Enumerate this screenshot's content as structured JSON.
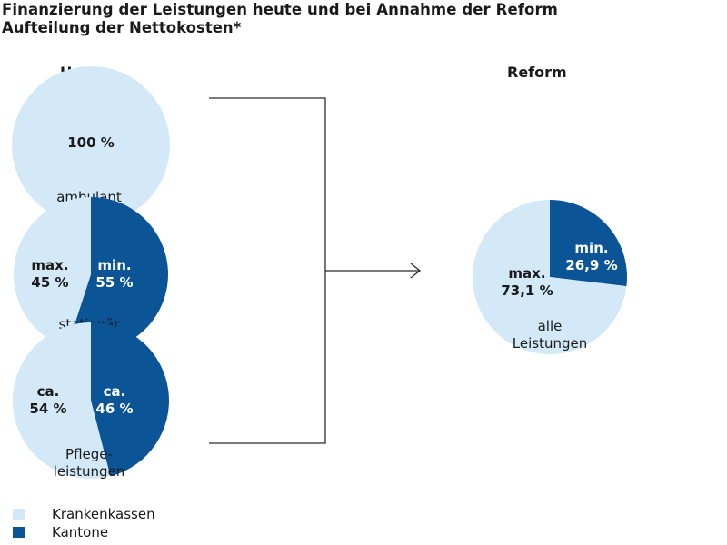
{
  "title": "Finanzierung der Leistungen heute und bei Annahme der Reform",
  "subtitle": "Aufteilung der Nettokosten*",
  "chart_data": {
    "type": "pie",
    "colors": {
      "krankenkassen": "#d3e9f8",
      "kantone": "#0b5596"
    },
    "legend": [
      {
        "label": "Krankenkassen",
        "color_key": "krankenkassen"
      },
      {
        "label": "Kantone",
        "color_key": "kantone"
      }
    ],
    "groups": [
      {
        "heading": "Heute"
      },
      {
        "heading": "Reform"
      }
    ],
    "pies": [
      {
        "category": "ambulant",
        "group": "Heute",
        "slices": [
          {
            "series": "Krankenkassen",
            "value": 100,
            "label": "100 %"
          }
        ]
      },
      {
        "category": "stationär",
        "group": "Heute",
        "slices": [
          {
            "series": "Kantone",
            "value": 55,
            "label": "min.\n55 %"
          },
          {
            "series": "Krankenkassen",
            "value": 45,
            "label": "max.\n45 %"
          }
        ]
      },
      {
        "category": "Pflege-\nleistungen",
        "group": "Heute",
        "slices": [
          {
            "series": "Kantone",
            "value": 46,
            "label": "ca.\n46 %"
          },
          {
            "series": "Krankenkassen",
            "value": 54,
            "label": "ca.\n54 %"
          }
        ]
      },
      {
        "category": "alle\nLeistungen",
        "group": "Reform",
        "slices": [
          {
            "series": "Kantone",
            "value": 26.9,
            "label": "min.\n26,9 %"
          },
          {
            "series": "Krankenkassen",
            "value": 73.1,
            "label": "max.\n73,1 %"
          }
        ]
      }
    ]
  }
}
